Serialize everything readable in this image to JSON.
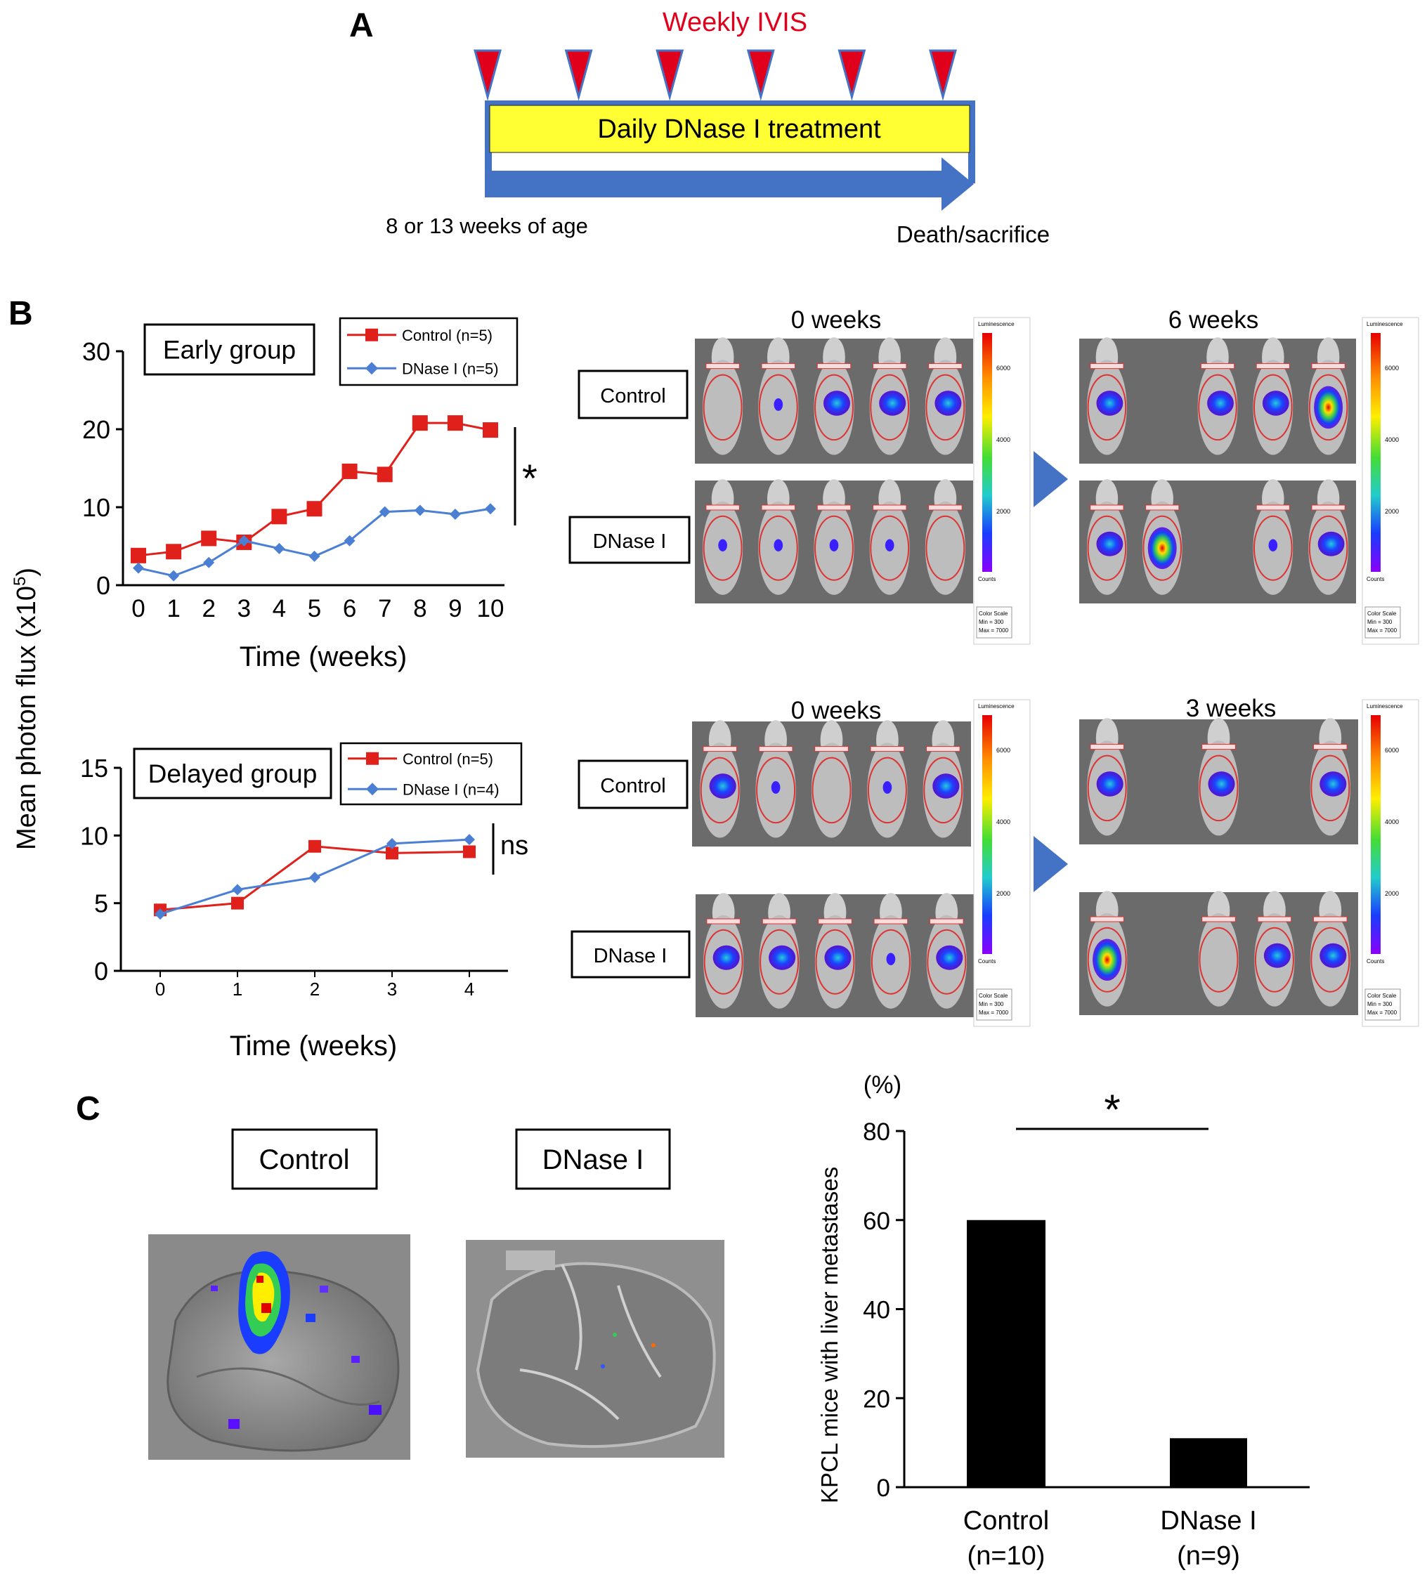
{
  "panel_labels": {
    "a": "A",
    "b": "B",
    "c": "C"
  },
  "timeline": {
    "ivis_label": "Weekly IVIS",
    "treatment_label": "Daily DNase I treatment",
    "start_label": "8 or 13 weeks of age",
    "end_label": "Death/sacrifice",
    "ivis_marker_count": 6,
    "colors": {
      "marker": "#e0001b",
      "treatment_bar": "#ffff33",
      "arrow": "#4472c4",
      "label_red": "#e0001b"
    }
  },
  "y_shared_label": "Mean photon flux (x10",
  "y_shared_label_sup": "5",
  "y_shared_label_end": ")",
  "imaging": {
    "row_labels": {
      "control": "Control",
      "dnase": "DNase I"
    },
    "early_left": "0 weeks",
    "early_right": "6 weeks",
    "delayed_left": "0 weeks",
    "delayed_right": "3 weeks",
    "scale": {
      "title": "Luminescence",
      "counts": "Counts",
      "ticks": [
        "6000",
        "4000",
        "2000"
      ],
      "note": [
        "Color Scale",
        "Min = 300",
        "Max = 7000"
      ]
    }
  },
  "liver": {
    "control_label": "Control",
    "dnase_label": "DNase I"
  },
  "chart_data": [
    {
      "type": "line",
      "title": "Early group",
      "xlabel": "Time (weeks)",
      "ylabel": "Mean photon flux (x10^5)",
      "x": [
        0,
        1,
        2,
        3,
        4,
        5,
        6,
        7,
        8,
        9,
        10
      ],
      "ylim": [
        0,
        30
      ],
      "yticks": [
        0,
        10,
        20,
        30
      ],
      "series": [
        {
          "name": "Control (n=5)",
          "color": "#e0201b",
          "marker": "square",
          "values": [
            3.8,
            4.3,
            6.0,
            5.5,
            8.8,
            9.8,
            14.6,
            14.2,
            20.8,
            20.8,
            19.9
          ]
        },
        {
          "name": "DNase I (n=5)",
          "color": "#4a7fd4",
          "marker": "diamond",
          "values": [
            2.2,
            1.2,
            2.9,
            5.7,
            4.7,
            3.7,
            5.7,
            9.4,
            9.6,
            9.1,
            9.8
          ]
        }
      ],
      "significance": "*",
      "legend": "top-right"
    },
    {
      "type": "line",
      "title": "Delayed group",
      "xlabel": "Time (weeks)",
      "ylabel": "Mean photon flux (x10^5)",
      "x": [
        0,
        1,
        2,
        3,
        4
      ],
      "ylim": [
        0,
        15
      ],
      "yticks": [
        0,
        5,
        10,
        15
      ],
      "series": [
        {
          "name": "Control (n=5)",
          "color": "#e0201b",
          "marker": "square",
          "values": [
            4.5,
            5.0,
            9.2,
            8.7,
            8.8
          ]
        },
        {
          "name": "DNase I (n=4)",
          "color": "#4a7fd4",
          "marker": "diamond",
          "values": [
            4.2,
            6.0,
            6.9,
            9.4,
            9.7
          ]
        }
      ],
      "significance": "ns",
      "legend": "top-right"
    },
    {
      "type": "bar",
      "ylabel": "KPCL mice with liver metastases",
      "yunit": "(%)",
      "categories": [
        "Control",
        "DNase I"
      ],
      "category_n": [
        "(n=10)",
        "(n=9)"
      ],
      "values": [
        60,
        11
      ],
      "ylim": [
        0,
        80
      ],
      "yticks": [
        0,
        20,
        40,
        60,
        80
      ],
      "significance": "*",
      "color": "#000000"
    }
  ]
}
